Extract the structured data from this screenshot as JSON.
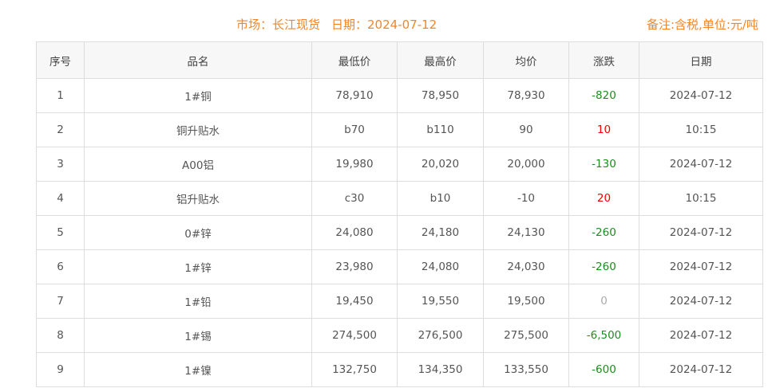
{
  "header": {
    "market": "市场：长江现货",
    "date": "日期：2024-07-12",
    "note": "备注:含税,单位:元/吨"
  },
  "colors": {
    "accent": "#f0862a",
    "up": "#e00000",
    "down": "#1e8c1e",
    "flat": "#aaaaaa"
  },
  "table": {
    "columns": [
      "序号",
      "品名",
      "最低价",
      "最高价",
      "均价",
      "涨跌",
      "日期"
    ],
    "rows": [
      {
        "no": "1",
        "name": "1#铜",
        "low": "78,910",
        "high": "78,950",
        "avg": "78,930",
        "change": "-820",
        "dir": "down",
        "date": "2024-07-12"
      },
      {
        "no": "2",
        "name": "铜升贴水",
        "low": "b70",
        "high": "b110",
        "avg": "90",
        "change": "10",
        "dir": "up",
        "date": "10:15"
      },
      {
        "no": "3",
        "name": "A00铝",
        "low": "19,980",
        "high": "20,020",
        "avg": "20,000",
        "change": "-130",
        "dir": "down",
        "date": "2024-07-12"
      },
      {
        "no": "4",
        "name": "铝升贴水",
        "low": "c30",
        "high": "b10",
        "avg": "-10",
        "change": "20",
        "dir": "up",
        "date": "10:15"
      },
      {
        "no": "5",
        "name": "0#锌",
        "low": "24,080",
        "high": "24,180",
        "avg": "24,130",
        "change": "-260",
        "dir": "down",
        "date": "2024-07-12"
      },
      {
        "no": "6",
        "name": "1#锌",
        "low": "23,980",
        "high": "24,080",
        "avg": "24,030",
        "change": "-260",
        "dir": "down",
        "date": "2024-07-12"
      },
      {
        "no": "7",
        "name": "1#铅",
        "low": "19,450",
        "high": "19,550",
        "avg": "19,500",
        "change": "0",
        "dir": "flat",
        "date": "2024-07-12"
      },
      {
        "no": "8",
        "name": "1#锡",
        "low": "274,500",
        "high": "276,500",
        "avg": "275,500",
        "change": "-6,500",
        "dir": "down",
        "date": "2024-07-12"
      },
      {
        "no": "9",
        "name": "1#镍",
        "low": "132,750",
        "high": "134,350",
        "avg": "133,550",
        "change": "-600",
        "dir": "down",
        "date": "2024-07-12"
      }
    ]
  }
}
